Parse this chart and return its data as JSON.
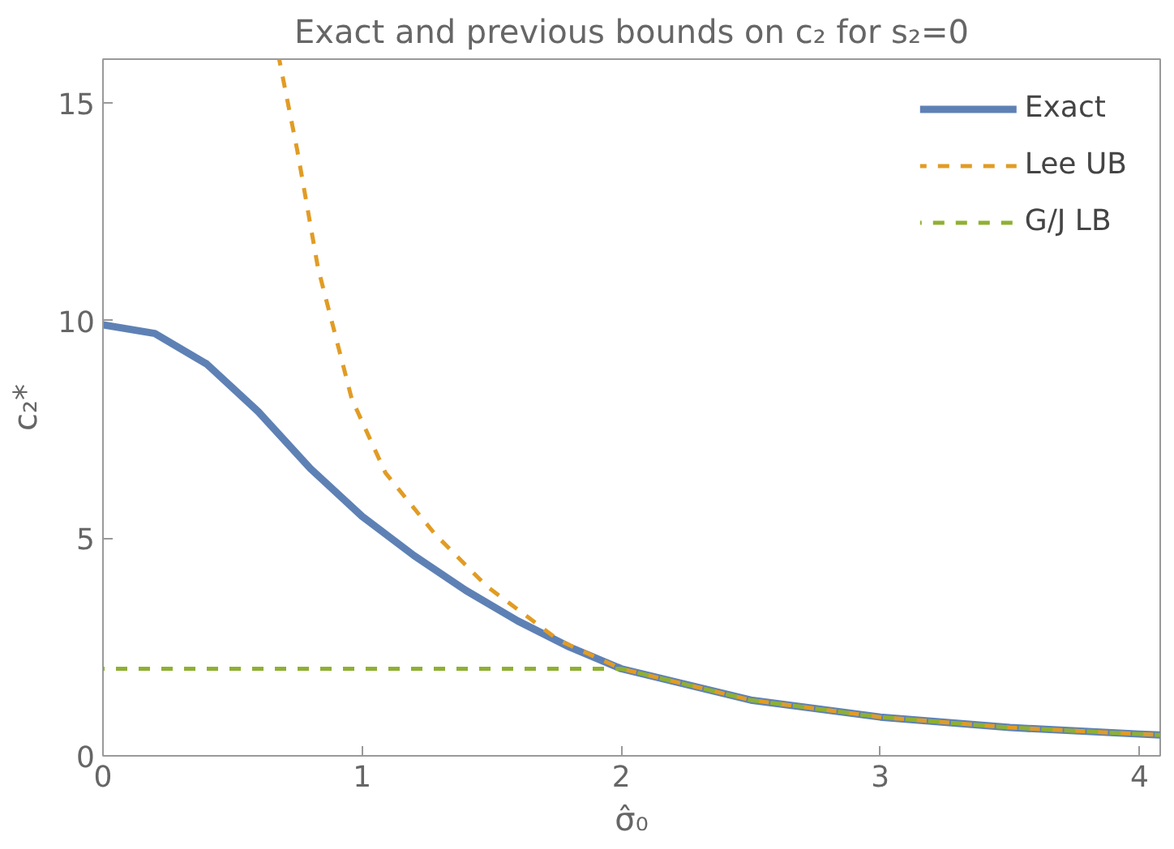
{
  "chart_data": {
    "type": "line",
    "title": "Exact and previous bounds on c₂ for s₂=0",
    "xlabel": "σ̂₀",
    "ylabel": "c₂*",
    "xlim": [
      0,
      4.08
    ],
    "ylim": [
      0,
      16
    ],
    "xticks": [
      0,
      1,
      2,
      3,
      4
    ],
    "yticks": [
      0,
      5,
      10,
      15
    ],
    "grid": false,
    "legend": "top right",
    "series": [
      {
        "name": "Exact",
        "color": "#5e81b5",
        "line_style": "solid",
        "x": [
          0,
          0.2,
          0.4,
          0.6,
          0.8,
          1.0,
          1.2,
          1.4,
          1.6,
          1.8,
          2.0,
          2.5,
          3.0,
          3.5,
          4.0,
          4.08
        ],
        "values": [
          9.9,
          9.7,
          9.0,
          7.9,
          6.6,
          5.5,
          4.6,
          3.8,
          3.1,
          2.5,
          2.0,
          1.28,
          0.89,
          0.65,
          0.5,
          0.48
        ]
      },
      {
        "name": "Lee UB",
        "color": "#e19c24",
        "line_style": "dashed",
        "x": [
          0.68,
          0.75,
          0.83,
          0.96,
          1.09,
          1.28,
          1.48,
          1.76,
          2.0,
          2.5,
          3.0,
          3.5,
          4.0,
          4.08
        ],
        "values": [
          16,
          13.9,
          11.2,
          8.2,
          6.5,
          5.1,
          3.9,
          2.65,
          2.0,
          1.28,
          0.89,
          0.65,
          0.5,
          0.48
        ]
      },
      {
        "name": "G/J LB",
        "color": "#8fb032",
        "line_style": "dashed",
        "x": [
          0,
          2.0,
          2.5,
          3.0,
          3.5,
          4.0,
          4.08
        ],
        "values": [
          2,
          2.0,
          1.28,
          0.89,
          0.65,
          0.5,
          0.48
        ]
      }
    ]
  }
}
